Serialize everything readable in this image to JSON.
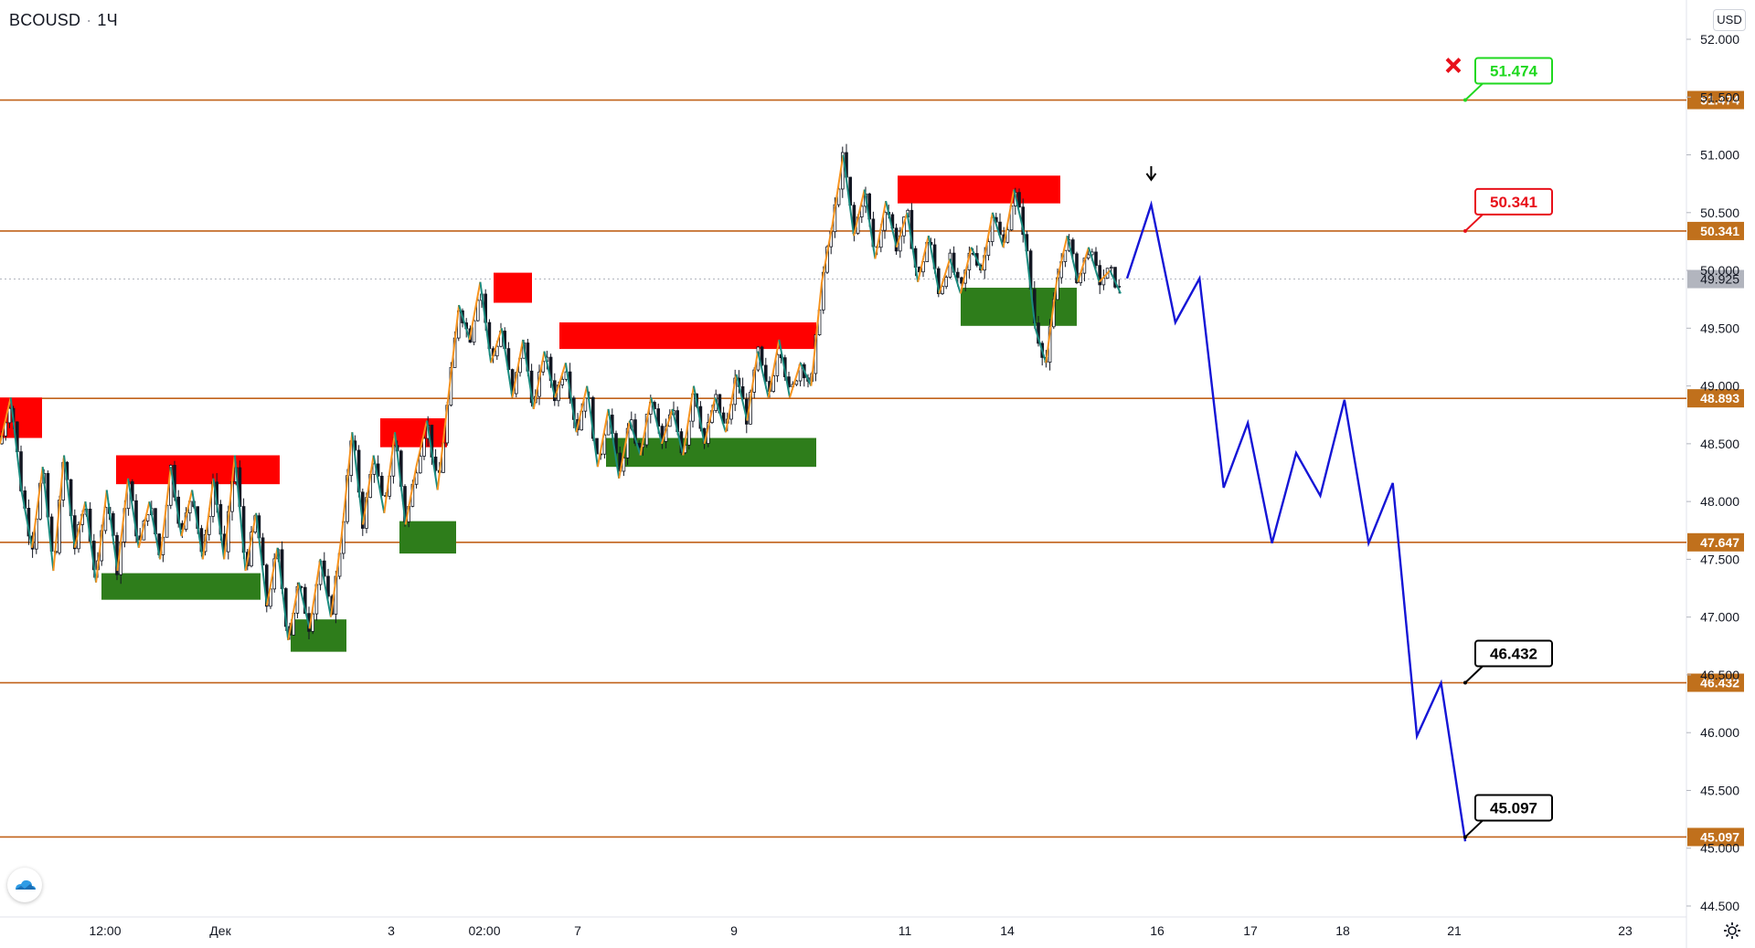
{
  "header": {
    "symbol": "BCOUSD",
    "separator": "·",
    "interval": "1Ч",
    "currency": "USD"
  },
  "colors": {
    "level_line": "#c1621a",
    "level_label": "#c0701c",
    "price_label": "#b2b5be",
    "supply_zone": "#ff0000",
    "demand_zone": "#2e7d1b",
    "zigzag_up": "#f7931e",
    "zigzag_down": "#1a8b7f",
    "forecast": "#1515d6",
    "candle": "#131722",
    "target_red": "#e8101a",
    "target_green": "#1fd81f",
    "target_black": "#000000"
  },
  "chart_data": {
    "type": "candlestick",
    "y_axis": {
      "min": 44.5,
      "max": 52.0,
      "ticks": [
        "52.000",
        "51.500",
        "51.000",
        "50.500",
        "50.000",
        "49.500",
        "49.000",
        "48.500",
        "48.000",
        "47.500",
        "47.000",
        "46.500",
        "46.000",
        "45.500",
        "45.000",
        "44.500"
      ]
    },
    "x_axis": {
      "ticks": [
        "12:00",
        "Дек",
        "3",
        "02:00",
        "7",
        "9",
        "11",
        "14",
        "16",
        "17",
        "18",
        "21",
        "23"
      ]
    },
    "current_price": "49.925",
    "levels": [
      "51.474",
      "50.341",
      "48.893",
      "47.647",
      "46.432",
      "45.097"
    ],
    "targets": [
      {
        "label": "51.474",
        "style": "green",
        "cancelled": true
      },
      {
        "label": "50.341",
        "style": "red"
      },
      {
        "label": "46.432",
        "style": "black"
      },
      {
        "label": "45.097",
        "style": "black"
      }
    ],
    "supply_zones": [
      [
        48.9,
        48.55
      ],
      [
        48.4,
        48.15
      ],
      [
        48.72,
        48.47
      ],
      [
        49.98,
        49.72
      ],
      [
        49.55,
        49.32
      ],
      [
        50.82,
        50.58
      ]
    ],
    "demand_zones": [
      [
        47.38,
        47.15
      ],
      [
        46.98,
        46.7
      ],
      [
        47.83,
        47.55
      ],
      [
        48.55,
        48.3
      ],
      [
        49.85,
        49.52
      ]
    ],
    "forecast_path": [
      49.93,
      50.57,
      49.55,
      49.93,
      48.12,
      48.68,
      47.64,
      48.42,
      48.05,
      48.88,
      47.64,
      48.16,
      45.97,
      46.43,
      45.06
    ],
    "price_path": [
      48.5,
      48.9,
      48.1,
      47.6,
      48.3,
      47.4,
      48.4,
      47.6,
      48.0,
      47.3,
      48.1,
      47.4,
      48.2,
      47.6,
      48.0,
      47.5,
      48.3,
      47.7,
      48.1,
      47.5,
      48.2,
      47.5,
      48.4,
      47.4,
      47.9,
      47.1,
      47.6,
      46.8,
      47.3,
      46.9,
      47.5,
      47.0,
      47.7,
      48.6,
      47.8,
      48.4,
      47.9,
      48.6,
      47.8,
      48.3,
      48.7,
      48.1,
      48.9,
      49.7,
      49.4,
      49.9,
      49.2,
      49.5,
      48.9,
      49.4,
      48.8,
      49.3,
      48.9,
      49.2,
      48.6,
      49.0,
      48.3,
      48.8,
      48.2,
      48.7,
      48.4,
      48.9,
      48.5,
      48.8,
      48.4,
      49.0,
      48.5,
      48.9,
      48.6,
      49.1,
      48.7,
      49.3,
      48.9,
      49.4,
      48.9,
      49.2,
      49.0,
      49.9,
      50.4,
      51.0,
      50.3,
      50.7,
      50.1,
      50.6,
      50.2,
      50.5,
      49.9,
      50.3,
      49.8,
      50.1,
      49.8,
      50.2,
      50.0,
      50.5,
      50.2,
      50.7,
      50.3,
      49.5,
      49.2,
      49.9,
      50.3,
      49.9,
      50.2,
      49.9,
      50.0,
      49.8
    ]
  }
}
